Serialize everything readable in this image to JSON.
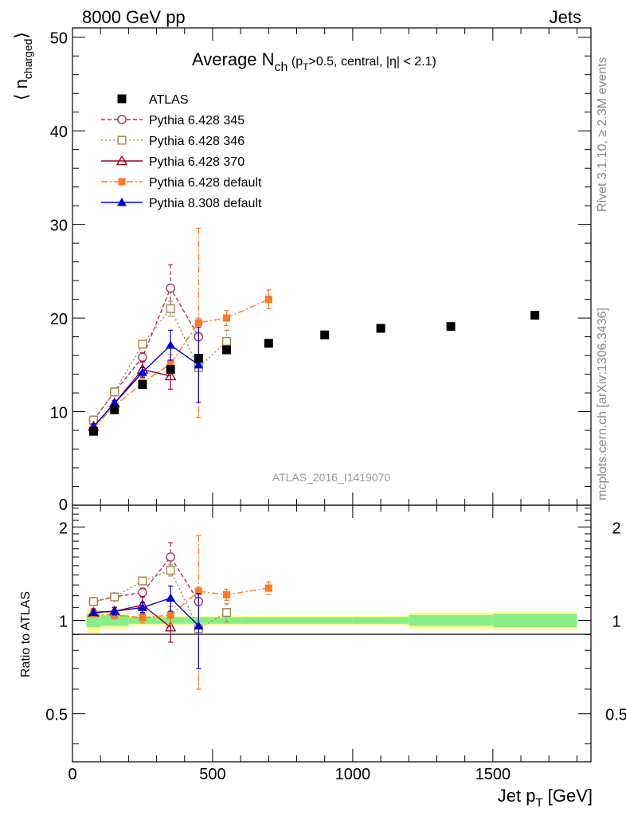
{
  "header": {
    "left": "8000 GeV pp",
    "right": "Jets"
  },
  "side_labels": {
    "rivet": "Rivet 3.1.10, ≥ 2.3M events",
    "mcplots": "mcplots.cern.ch [arXiv:1306.3436]"
  },
  "watermark": "ATLAS_2016_I1419070",
  "title": {
    "main": "Average N",
    "sub": "ch",
    "cond_a": " (p",
    "cond_sub": "T",
    "cond_b": ">0.5, central, |η| < 2.1)"
  },
  "axes": {
    "y_main": {
      "pre": "⟨ n",
      "sub": "charged",
      "post": "⟩"
    },
    "y_ratio": "Ratio to ATLAS",
    "x": {
      "pre": "Jet p",
      "sub": "T",
      "post": " [GeV]"
    }
  },
  "chart_data": [
    {
      "type": "scatter",
      "panel": "main",
      "xlim": [
        0,
        1850
      ],
      "ylim": [
        0,
        51
      ],
      "y_ticks": [
        "0",
        "10",
        "20",
        "30",
        "40",
        "50"
      ],
      "grid": false,
      "legend_position": "top-left",
      "data": {
        "name": "ATLAS",
        "x": [
          75,
          150,
          250,
          350,
          450,
          550,
          700,
          900,
          1100,
          1350,
          1650
        ],
        "y": [
          7.9,
          10.2,
          12.9,
          14.5,
          15.7,
          16.6,
          17.3,
          18.2,
          18.9,
          19.1,
          20.3
        ]
      },
      "series": [
        {
          "name": "Pythia 6.428 345",
          "color": "#aa3355",
          "marker": "open-circle",
          "dash": "5,3",
          "x": [
            75,
            150,
            250,
            350,
            450
          ],
          "y": [
            9.1,
            12.1,
            15.8,
            23.2,
            18.0
          ],
          "err": [
            0.2,
            0.3,
            0.5,
            2.5,
            0.0
          ]
        },
        {
          "name": "Pythia 6.428 346",
          "color": "#a08850",
          "marker": "open-square",
          "dash": "2,3",
          "x": [
            75,
            150,
            250,
            350,
            450,
            550
          ],
          "y": [
            9.1,
            12.1,
            17.2,
            21.0,
            14.7,
            17.5
          ],
          "err": [
            0.2,
            0.3,
            0.4,
            0.8,
            5.3,
            1.2
          ]
        },
        {
          "name": "Pythia 6.428 370",
          "color": "#990022",
          "marker": "open-triangle",
          "dash": "",
          "x": [
            75,
            150,
            250,
            350
          ],
          "y": [
            8.4,
            10.9,
            14.5,
            13.8
          ],
          "err": [
            0.3,
            0.3,
            0.9,
            1.4
          ]
        },
        {
          "name": "Pythia 6.428 default",
          "color": "#ff7722",
          "marker": "filled-square",
          "dash": "8,3,2,3",
          "x": [
            75,
            150,
            250,
            350,
            450,
            550,
            700
          ],
          "y": [
            8.3,
            10.6,
            13.1,
            15.1,
            19.5,
            20.0,
            22.0
          ],
          "err": [
            0.2,
            0.3,
            0.5,
            1.0,
            10.1,
            0.8,
            1.0
          ]
        },
        {
          "name": "Pythia 8.308 default",
          "color": "#0000dd",
          "marker": "filled-triangle",
          "dash": "",
          "x": [
            75,
            150,
            250,
            350,
            450
          ],
          "y": [
            8.4,
            10.9,
            14.2,
            17.1,
            15.0
          ],
          "err": [
            0.2,
            0.3,
            0.5,
            1.6,
            4.0
          ]
        }
      ]
    },
    {
      "type": "scatter",
      "panel": "ratio",
      "xlabel": "Jet p_T [GeV]",
      "ylabel": "Ratio to ATLAS",
      "xlim": [
        0,
        1850
      ],
      "ylim": [
        0.35,
        2.35
      ],
      "x_ticks": [
        "0",
        "500",
        "1000",
        "1500"
      ],
      "y_ticks": [
        "0.5",
        "1",
        "2"
      ],
      "grid": false,
      "uncertainty_bands": {
        "edges": [
          50,
          100,
          200,
          300,
          400,
          500,
          600,
          800,
          1000,
          1200,
          1500,
          1800
        ],
        "green": [
          0.05,
          0.04,
          0.025,
          0.025,
          0.025,
          0.025,
          0.025,
          0.025,
          0.025,
          0.04,
          0.05
        ],
        "yellow": [
          0.09,
          0.06,
          0.035,
          0.035,
          0.035,
          0.035,
          0.035,
          0.035,
          0.035,
          0.06,
          0.07
        ]
      },
      "series": [
        {
          "name": "Pythia 6.428 345",
          "x": [
            75,
            150,
            250,
            350,
            450
          ],
          "y": [
            1.15,
            1.19,
            1.23,
            1.6,
            1.15
          ],
          "err": [
            0.02,
            0.02,
            0.04,
            0.18,
            0.0
          ]
        },
        {
          "name": "Pythia 6.428 346",
          "x": [
            75,
            150,
            250,
            350,
            450,
            550
          ],
          "y": [
            1.15,
            1.19,
            1.34,
            1.45,
            0.94,
            1.06
          ],
          "err": [
            0.02,
            0.02,
            0.03,
            0.06,
            0.34,
            0.07
          ]
        },
        {
          "name": "Pythia 6.428 370",
          "x": [
            75,
            150,
            250,
            350
          ],
          "y": [
            1.06,
            1.07,
            1.12,
            0.95
          ],
          "err": [
            0.03,
            0.03,
            0.07,
            0.1
          ]
        },
        {
          "name": "Pythia 6.428 default",
          "x": [
            75,
            150,
            250,
            350,
            450,
            550,
            700
          ],
          "y": [
            1.05,
            1.04,
            1.02,
            1.04,
            1.24,
            1.21,
            1.27
          ],
          "err": [
            0.02,
            0.03,
            0.04,
            0.07,
            0.64,
            0.05,
            0.06
          ]
        },
        {
          "name": "Pythia 8.308 default",
          "x": [
            75,
            150,
            250,
            350,
            450
          ],
          "y": [
            1.06,
            1.07,
            1.1,
            1.18,
            0.96
          ],
          "err": [
            0.02,
            0.03,
            0.04,
            0.11,
            0.26
          ]
        }
      ]
    }
  ]
}
